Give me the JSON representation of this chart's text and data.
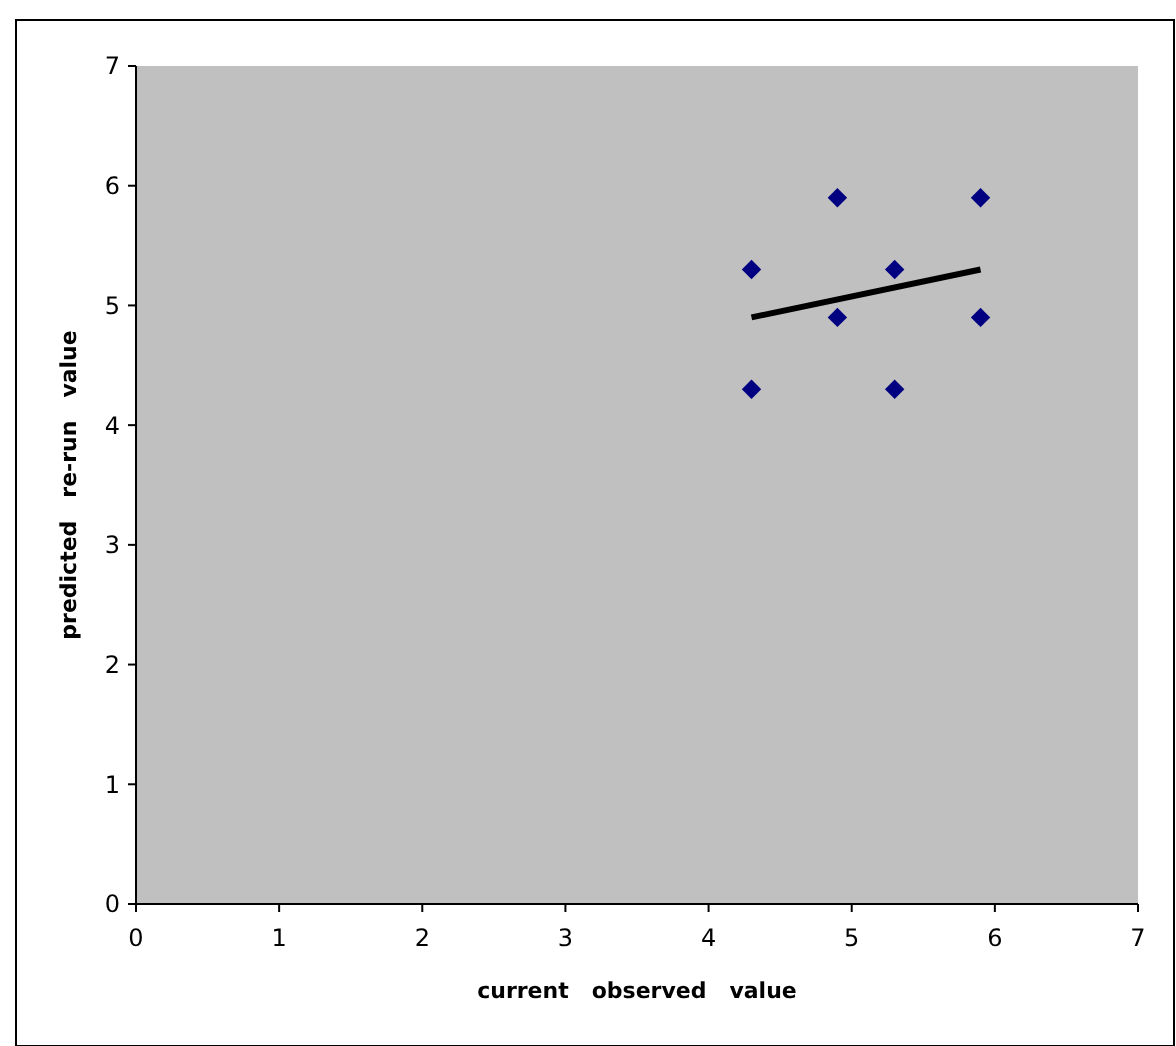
{
  "chart_data": {
    "type": "scatter",
    "xlabel": "current   observed   value",
    "ylabel": "predicted   re-run   value",
    "xlim": [
      0,
      7
    ],
    "ylim": [
      0,
      7
    ],
    "xticks": [
      0,
      1,
      2,
      3,
      4,
      5,
      6,
      7
    ],
    "yticks": [
      0,
      1,
      2,
      3,
      4,
      5,
      6,
      7
    ],
    "grid": false,
    "series": [
      {
        "color": "#000080",
        "marker": "diamond",
        "x": [
          4.3,
          4.3,
          4.9,
          4.9,
          5.3,
          5.3,
          5.9,
          5.9
        ],
        "values": [
          5.3,
          4.3,
          5.9,
          4.9,
          5.3,
          4.3,
          5.9,
          4.9
        ]
      },
      {
        "type": "line",
        "color": "#000000",
        "marker": "none",
        "x": [
          4.3,
          5.9
        ],
        "values": [
          4.9,
          5.3
        ]
      }
    ]
  }
}
